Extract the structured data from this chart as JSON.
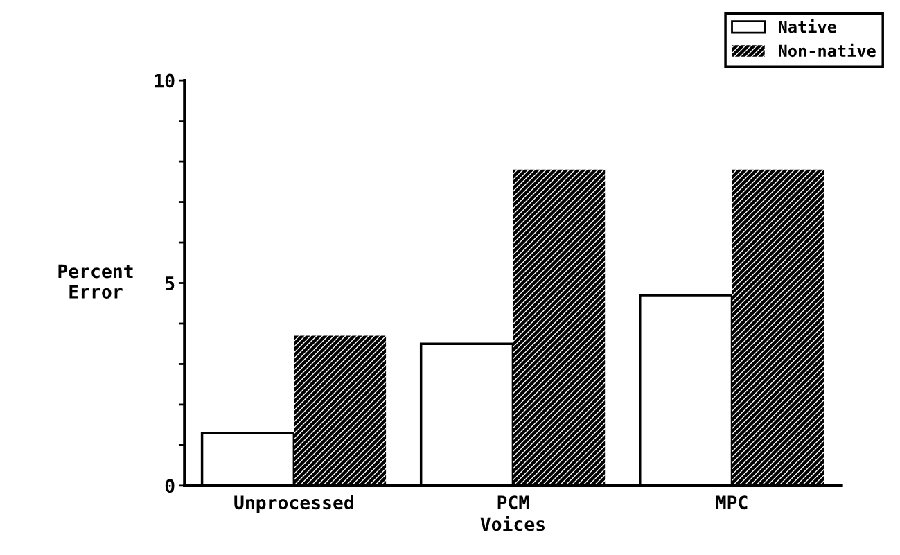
{
  "chart_data": {
    "type": "bar",
    "xlabel": "Voices",
    "ylabel": "Percent\nError",
    "categories": [
      "Unprocessed",
      "PCM",
      "MPC"
    ],
    "series": [
      {
        "name": "Native",
        "color": "#ffffff",
        "values": [
          1.3,
          3.5,
          4.7
        ]
      },
      {
        "name": "Non-native",
        "color": "#000000",
        "values": [
          3.7,
          7.8,
          7.8
        ]
      }
    ],
    "ylim": [
      0,
      10
    ],
    "yticks": [
      0,
      {
        "value": 1,
        "label": null
      },
      {
        "value": 2,
        "label": null
      },
      {
        "value": 3,
        "label": null
      },
      {
        "value": 4,
        "label": null
      },
      5,
      {
        "value": 6,
        "label": null
      },
      {
        "value": 7,
        "label": null
      },
      {
        "value": 8,
        "label": null
      },
      {
        "value": 9,
        "label": null
      },
      10
    ],
    "grid": false,
    "legend": "top right"
  }
}
